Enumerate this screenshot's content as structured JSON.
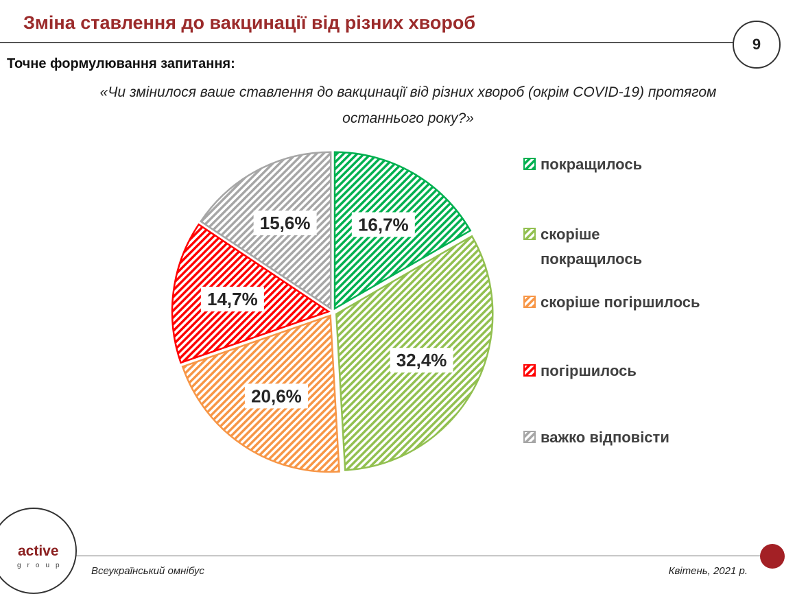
{
  "header": {
    "title": "Зміна ставлення до вакцинації від різних хвороб",
    "page_number": "9"
  },
  "question": {
    "label": "Точне формулювання запитання:",
    "line1": "«Чи змінилося ваше ставлення до вакцинації від різних хвороб (окрім COVID-19) протягом",
    "line2": "останнього року?»"
  },
  "chart_data": {
    "type": "pie",
    "slices": [
      {
        "label": "покращилось",
        "value": 16.7,
        "display": "16,7%",
        "color": "#00b050",
        "icon": "hatched-square-green"
      },
      {
        "label": "скоріше покращилось",
        "value": 32.4,
        "display": "32,4%",
        "color": "#92c050",
        "icon": "hatched-square-lightgreen"
      },
      {
        "label": "скоріше погіршилось",
        "value": 20.6,
        "display": "20,6%",
        "color": "#f79646",
        "icon": "hatched-square-orange"
      },
      {
        "label": "погіршилось",
        "value": 14.7,
        "display": "14,7%",
        "color": "#ff0000",
        "icon": "hatched-square-red"
      },
      {
        "label": "важко відповісти",
        "value": 15.6,
        "display": "15,6%",
        "color": "#a6a6a6",
        "icon": "hatched-square-gray"
      }
    ],
    "legend_position": "right"
  },
  "legend": {
    "items": [
      {
        "line1": "покращилось",
        "line2": ""
      },
      {
        "line1": "скоріше",
        "line2": "покращилось"
      },
      {
        "line1": "скоріше погіршилось",
        "line2": ""
      },
      {
        "line1": "погіршилось",
        "line2": ""
      },
      {
        "line1": "важко відповісти",
        "line2": ""
      }
    ]
  },
  "footer": {
    "left_text": "Всеукраїнський омнібус",
    "right_text": "Квітень, 2021 р.",
    "logo_word": "active",
    "logo_sub": "group"
  },
  "colors": {
    "title": "#9b2b2b",
    "accent_dot": "#a32025"
  }
}
